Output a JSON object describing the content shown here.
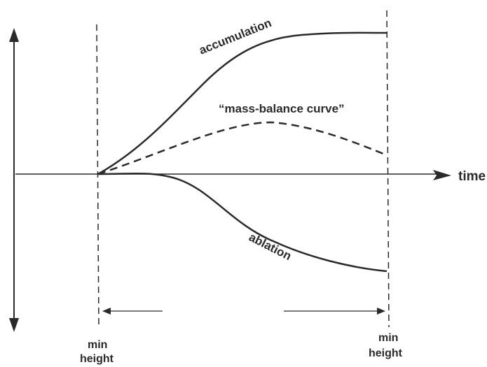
{
  "diagram": {
    "labels": {
      "accumulation": "accumulation",
      "mass_balance": "“mass-balance curve”",
      "ablation": "ablation",
      "time_axis": "time",
      "min_left_line1": "min",
      "min_left_line2": "height",
      "min_right_line1": "min",
      "min_right_line2": "height"
    },
    "colors": {
      "ink": "#2a2a2a",
      "background": "#ffffff"
    }
  }
}
